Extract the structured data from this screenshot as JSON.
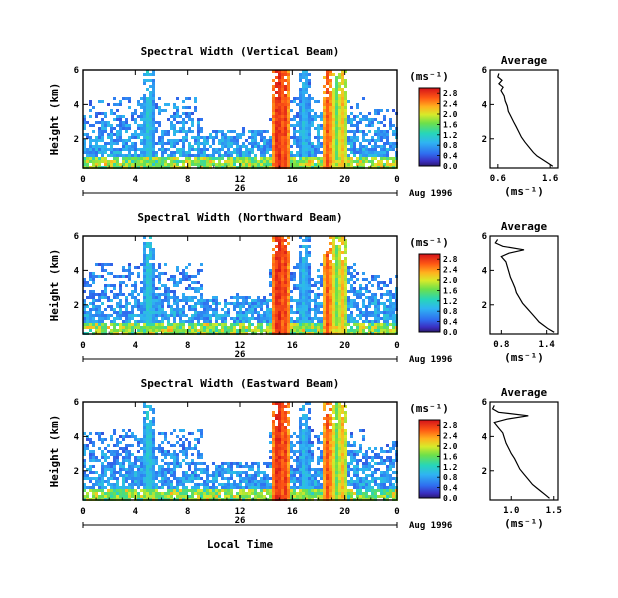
{
  "figure": {
    "xlabel": "Local Time",
    "date_label": "Aug 1996",
    "day_label": "26",
    "colorbar_unit": "(ms⁻¹)",
    "avg_title": "Average",
    "avg_xlabel": "(ms⁻¹)",
    "ylabel": "Height (km)"
  },
  "chart_data": [
    {
      "type": "heatmap",
      "title": "Spectral Width (Vertical Beam)",
      "ylabel": "Height (km)",
      "x_ticks": [
        "0",
        "4",
        "8",
        "12",
        "16",
        "20",
        "0"
      ],
      "xlim": [
        0,
        24
      ],
      "y_ticks": [
        "2",
        "4",
        "6"
      ],
      "ylim": [
        0.3,
        6.0
      ],
      "colorbar_ticks": [
        "0.0",
        "0.4",
        "0.8",
        "1.2",
        "1.6",
        "2.0",
        "2.4",
        "2.8"
      ],
      "colorbar_range": [
        0.0,
        3.0
      ],
      "average_profile": {
        "title": "Average",
        "x_ticks": [
          "0.6",
          "1.6"
        ],
        "xlim": [
          0.45,
          1.75
        ],
        "y_ticks": [
          "2",
          "4",
          "6"
        ],
        "ylim": [
          0.3,
          6.0
        ],
        "xlabel": "(ms⁻¹)",
        "height_km": [
          0.4,
          0.6,
          0.8,
          1.0,
          1.2,
          1.5,
          1.8,
          2.1,
          2.4,
          2.7,
          3.0,
          3.3,
          3.6,
          3.9,
          4.2,
          4.5,
          4.8,
          5.0,
          5.2,
          5.4,
          5.6,
          5.8
        ],
        "width_ms": [
          1.65,
          1.55,
          1.45,
          1.35,
          1.28,
          1.2,
          1.12,
          1.05,
          1.0,
          0.95,
          0.9,
          0.85,
          0.8,
          0.78,
          0.74,
          0.72,
          0.66,
          0.7,
          0.62,
          0.68,
          0.6,
          0.62
        ]
      }
    },
    {
      "type": "heatmap",
      "title": "Spectral Width (Northward Beam)",
      "ylabel": "Height (km)",
      "x_ticks": [
        "0",
        "4",
        "8",
        "12",
        "16",
        "20",
        "0"
      ],
      "xlim": [
        0,
        24
      ],
      "y_ticks": [
        "2",
        "4",
        "6"
      ],
      "ylim": [
        0.3,
        6.0
      ],
      "colorbar_ticks": [
        "0.0",
        "0.4",
        "0.8",
        "1.2",
        "1.6",
        "2.0",
        "2.4",
        "2.8"
      ],
      "colorbar_range": [
        0.0,
        3.0
      ],
      "average_profile": {
        "title": "Average",
        "x_ticks": [
          "0.8",
          "1.4"
        ],
        "xlim": [
          0.65,
          1.55
        ],
        "y_ticks": [
          "2",
          "4",
          "6"
        ],
        "ylim": [
          0.3,
          6.0
        ],
        "xlabel": "(ms⁻¹)",
        "height_km": [
          0.4,
          0.6,
          0.8,
          1.0,
          1.2,
          1.5,
          1.8,
          2.1,
          2.4,
          2.7,
          3.0,
          3.3,
          3.6,
          3.9,
          4.2,
          4.5,
          4.8,
          5.0,
          5.2,
          5.4,
          5.6,
          5.8
        ],
        "width_ms": [
          1.5,
          1.42,
          1.36,
          1.3,
          1.26,
          1.2,
          1.14,
          1.08,
          1.04,
          1.0,
          0.98,
          0.95,
          0.92,
          0.9,
          0.88,
          0.86,
          0.8,
          0.9,
          1.1,
          0.82,
          0.72,
          0.75
        ]
      }
    },
    {
      "type": "heatmap",
      "title": "Spectral Width (Eastward Beam)",
      "ylabel": "Height (km)",
      "x_ticks": [
        "0",
        "4",
        "8",
        "12",
        "16",
        "20",
        "0"
      ],
      "xlim": [
        0,
        24
      ],
      "y_ticks": [
        "2",
        "4",
        "6"
      ],
      "ylim": [
        0.3,
        6.0
      ],
      "colorbar_ticks": [
        "0.0",
        "0.4",
        "0.8",
        "1.2",
        "1.6",
        "2.0",
        "2.4",
        "2.8"
      ],
      "colorbar_range": [
        0.0,
        3.0
      ],
      "average_profile": {
        "title": "Average",
        "x_ticks": [
          "1.0",
          "1.5"
        ],
        "xlim": [
          0.75,
          1.55
        ],
        "y_ticks": [
          "2",
          "4",
          "6"
        ],
        "ylim": [
          0.3,
          6.0
        ],
        "xlabel": "(ms⁻¹)",
        "height_km": [
          0.4,
          0.6,
          0.8,
          1.0,
          1.2,
          1.5,
          1.8,
          2.1,
          2.4,
          2.7,
          3.0,
          3.3,
          3.6,
          3.9,
          4.2,
          4.5,
          4.8,
          5.0,
          5.2,
          5.4,
          5.6,
          5.8
        ],
        "width_ms": [
          1.45,
          1.4,
          1.35,
          1.3,
          1.25,
          1.2,
          1.15,
          1.1,
          1.07,
          1.04,
          1.0,
          0.97,
          0.94,
          0.92,
          0.9,
          0.85,
          0.8,
          0.95,
          1.2,
          0.85,
          0.78,
          0.8
        ]
      }
    }
  ]
}
